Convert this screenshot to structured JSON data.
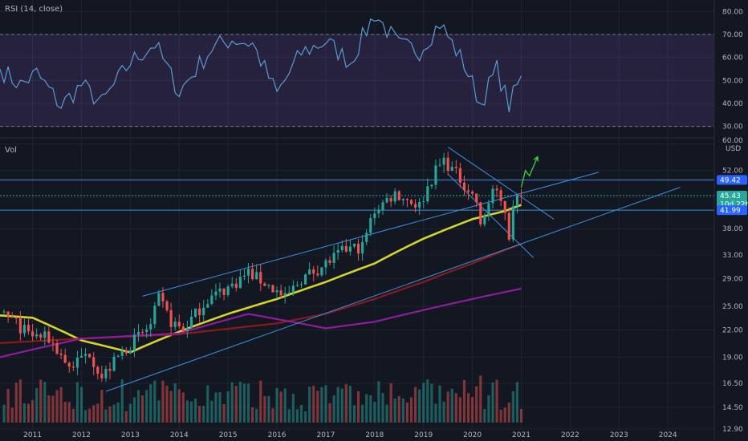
{
  "colors": {
    "background": "#131722",
    "grid": "#1f2333",
    "axis_text": "#b2b5be",
    "rsi_band": "#7e57c2",
    "rsi_line": "#5b9bd5",
    "up": "#26a69a",
    "down": "#ef5350",
    "trend": "#3d8fe0",
    "sma_yellow": "#d4d42a",
    "sma_red": "#8b1a1a",
    "sma_purple": "#8e1c9c",
    "arrow": "#3cd63c",
    "label_blue": "#2962ff",
    "label_green": "#26a69a"
  },
  "rsi_panel": {
    "title": "RSI (14, close)",
    "y_ticks": [
      "80.00",
      "70.00",
      "60.00",
      "50.00",
      "40.00",
      "30.00"
    ],
    "upper_band": 70,
    "lower_band": 30
  },
  "price_panel": {
    "title": "Vol",
    "currency": "USD",
    "y_ticks": [
      "60.00",
      "52.00",
      "45.00",
      "38.00",
      "33.00",
      "29.00",
      "25.00",
      "22.00",
      "19.00",
      "16.50",
      "14.50",
      "12.90"
    ],
    "cut_tick": "60.00",
    "price_labels": [
      {
        "text": "49.42",
        "value": 49.42,
        "color": "blue"
      },
      {
        "text": "45.43",
        "value": 45.43,
        "color": "green"
      },
      {
        "text": "10d 22h",
        "value": 43.4,
        "color": "green"
      },
      {
        "text": "41.99",
        "value": 41.99,
        "color": "blue"
      }
    ]
  },
  "x_axis": {
    "labels": [
      "2011",
      "2012",
      "2013",
      "2014",
      "2015",
      "2016",
      "2017",
      "2018",
      "2019",
      "2020",
      "2021",
      "2022",
      "2023",
      "2024"
    ]
  },
  "chart_data": {
    "type": "candlestick",
    "interval": "monthly",
    "y_scale": "log",
    "price_range": [
      12.9,
      62
    ],
    "rsi_range": [
      25,
      85
    ],
    "x_range": [
      "2010-05",
      "2024-12"
    ],
    "horizontal_levels": [
      49.42,
      41.99
    ],
    "dashed_level": 45.43,
    "close_anchors": [
      {
        "date": "2010-06",
        "close": 24.0
      },
      {
        "date": "2010-12",
        "close": 21.5
      },
      {
        "date": "2011-05",
        "close": 21.0
      },
      {
        "date": "2011-10",
        "close": 18.0
      },
      {
        "date": "2012-03",
        "close": 19.5
      },
      {
        "date": "2012-06",
        "close": 17.0
      },
      {
        "date": "2012-09",
        "close": 18.5
      },
      {
        "date": "2012-12",
        "close": 20.0
      },
      {
        "date": "2013-06",
        "close": 22.5
      },
      {
        "date": "2013-08",
        "close": 26.0
      },
      {
        "date": "2013-11",
        "close": 23.0
      },
      {
        "date": "2014-02",
        "close": 22.0
      },
      {
        "date": "2014-08",
        "close": 26.0
      },
      {
        "date": "2015-02",
        "close": 28.0
      },
      {
        "date": "2015-06",
        "close": 30.0
      },
      {
        "date": "2015-12",
        "close": 27.5
      },
      {
        "date": "2016-03",
        "close": 26.0
      },
      {
        "date": "2016-07",
        "close": 29.0
      },
      {
        "date": "2016-12",
        "close": 31.0
      },
      {
        "date": "2017-06",
        "close": 34.0
      },
      {
        "date": "2017-10",
        "close": 34.5
      },
      {
        "date": "2018-01",
        "close": 42.0
      },
      {
        "date": "2018-06",
        "close": 46.0
      },
      {
        "date": "2018-12",
        "close": 43.0
      },
      {
        "date": "2019-04",
        "close": 52.0
      },
      {
        "date": "2019-06",
        "close": 55.0
      },
      {
        "date": "2019-09",
        "close": 51.0
      },
      {
        "date": "2019-12",
        "close": 47.0
      },
      {
        "date": "2020-02",
        "close": 44.0
      },
      {
        "date": "2020-03",
        "close": 38.0
      },
      {
        "date": "2020-06",
        "close": 47.0
      },
      {
        "date": "2020-09",
        "close": 42.0
      },
      {
        "date": "2020-10",
        "close": 36.5
      },
      {
        "date": "2020-11",
        "close": 44.0
      },
      {
        "date": "2021-01",
        "close": 45.43
      }
    ],
    "rsi_anchors": [
      {
        "date": "2010-05",
        "rsi": 55
      },
      {
        "date": "2010-10",
        "rsi": 48
      },
      {
        "date": "2011-02",
        "rsi": 53
      },
      {
        "date": "2011-08",
        "rsi": 39
      },
      {
        "date": "2012-01",
        "rsi": 48
      },
      {
        "date": "2012-06",
        "rsi": 40
      },
      {
        "date": "2013-01",
        "rsi": 58
      },
      {
        "date": "2013-07",
        "rsi": 66
      },
      {
        "date": "2014-01",
        "rsi": 45
      },
      {
        "date": "2014-09",
        "rsi": 64
      },
      {
        "date": "2015-02",
        "rsi": 68
      },
      {
        "date": "2015-07",
        "rsi": 66
      },
      {
        "date": "2016-01",
        "rsi": 44
      },
      {
        "date": "2016-07",
        "rsi": 62
      },
      {
        "date": "2017-01",
        "rsi": 67
      },
      {
        "date": "2017-07",
        "rsi": 58
      },
      {
        "date": "2018-01",
        "rsi": 79
      },
      {
        "date": "2018-07",
        "rsi": 65
      },
      {
        "date": "2018-12",
        "rsi": 63
      },
      {
        "date": "2019-05",
        "rsi": 75
      },
      {
        "date": "2019-11",
        "rsi": 57
      },
      {
        "date": "2020-03",
        "rsi": 40
      },
      {
        "date": "2020-07",
        "rsi": 55
      },
      {
        "date": "2020-10",
        "rsi": 39
      },
      {
        "date": "2021-01",
        "rsi": 52
      }
    ],
    "moving_averages": [
      {
        "color": "yellow",
        "points": [
          {
            "date": "2010-05",
            "value": 23.8
          },
          {
            "date": "2011-01",
            "value": 23.5
          },
          {
            "date": "2012-01",
            "value": 20.8
          },
          {
            "date": "2013-01",
            "value": 19.5
          },
          {
            "date": "2014-01",
            "value": 21.8
          },
          {
            "date": "2015-01",
            "value": 24.0
          },
          {
            "date": "2016-01",
            "value": 26.0
          },
          {
            "date": "2017-01",
            "value": 28.5
          },
          {
            "date": "2018-01",
            "value": 31.5
          },
          {
            "date": "2019-01",
            "value": 36.0
          },
          {
            "date": "2020-01",
            "value": 40.0
          },
          {
            "date": "2020-09",
            "value": 41.8
          },
          {
            "date": "2021-01",
            "value": 43.2
          }
        ]
      },
      {
        "color": "red",
        "points": [
          {
            "date": "2010-05",
            "value": 20.5
          },
          {
            "date": "2012-01",
            "value": 21.0
          },
          {
            "date": "2014-01",
            "value": 21.5
          },
          {
            "date": "2016-01",
            "value": 22.8
          },
          {
            "date": "2017-01",
            "value": 24.0
          },
          {
            "date": "2018-01",
            "value": 26.0
          },
          {
            "date": "2019-01",
            "value": 28.5
          },
          {
            "date": "2020-01",
            "value": 31.5
          },
          {
            "date": "2021-01",
            "value": 35.0
          }
        ]
      },
      {
        "color": "purple",
        "points": [
          {
            "date": "2010-05",
            "value": 19.0
          },
          {
            "date": "2012-01",
            "value": 21.0
          },
          {
            "date": "2014-01",
            "value": 21.6
          },
          {
            "date": "2015-06",
            "value": 24.0
          },
          {
            "date": "2017-01",
            "value": 22.2
          },
          {
            "date": "2018-01",
            "value": 23.0
          },
          {
            "date": "2019-01",
            "value": 24.5
          },
          {
            "date": "2020-01",
            "value": 26.0
          },
          {
            "date": "2021-01",
            "value": 27.5
          }
        ]
      }
    ],
    "trendlines": [
      {
        "from": {
          "date": "2012-07",
          "value": 15.8
        },
        "to": {
          "date": "2024-04",
          "value": 47.5
        }
      },
      {
        "from": {
          "date": "2013-04",
          "value": 26.4
        },
        "to": {
          "date": "2022-08",
          "value": 51.5
        }
      },
      {
        "from": {
          "date": "2019-07",
          "value": 59.0
        },
        "to": {
          "date": "2021-09",
          "value": 40.0
        }
      },
      {
        "from": {
          "date": "2019-07",
          "value": 51.0
        },
        "to": {
          "date": "2021-04",
          "value": 32.5
        }
      }
    ],
    "projection_arrow": [
      {
        "date": "2021-01",
        "value": 47.5
      },
      {
        "date": "2021-02",
        "value": 52.0
      },
      {
        "date": "2021-03",
        "value": 50.5
      },
      {
        "date": "2021-05",
        "value": 56.0
      }
    ]
  }
}
